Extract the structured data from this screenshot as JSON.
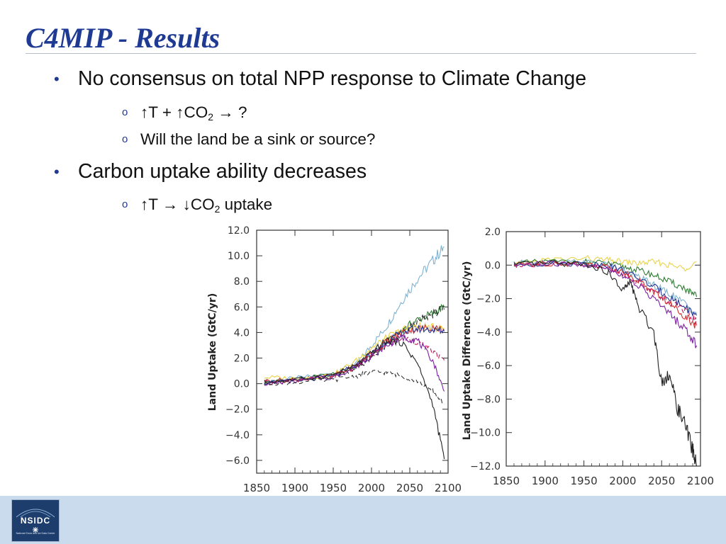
{
  "slide": {
    "title": "C4MIP - Results",
    "bullets": [
      {
        "text": "No consensus on total NPP response to Climate Change",
        "subs": [
          {
            "pre": "↑T + ↑CO",
            "sub": "2",
            "post": " → ?"
          },
          {
            "pre": "Will the land be a sink or source?",
            "sub": "",
            "post": ""
          }
        ]
      },
      {
        "text": "Carbon uptake ability decreases",
        "subs": [
          {
            "pre": "↑T  → ↓CO",
            "sub": "2",
            "post": " uptake"
          }
        ]
      }
    ],
    "logo": {
      "text": "NSIDC",
      "subtext": "National Snow and Ice Data Center"
    }
  },
  "colors": {
    "title": "#1f3a93",
    "footer": "#c9dbec",
    "logo": "#1d3e6c"
  },
  "chart_data": [
    {
      "type": "line",
      "title": "",
      "xlabel": "",
      "ylabel": "Land Uptake (GtC/yr)",
      "xlim": [
        1850,
        2100
      ],
      "ylim": [
        -7.0,
        12.0
      ],
      "x_ticks": [
        1850,
        1900,
        1950,
        2000,
        2050,
        2100
      ],
      "y_ticks": [
        "12.0",
        "10.0",
        "8.0",
        "6.0",
        "4.0",
        "2.0",
        "0.0",
        "−2.0",
        "−4.0",
        "−6.0"
      ],
      "grid": false,
      "series": [
        {
          "color": "#7fb2cf",
          "dash": false,
          "x": [
            1860,
            1900,
            1950,
            1980,
            2000,
            2020,
            2040,
            2060,
            2080,
            2095
          ],
          "y": [
            0.2,
            0.4,
            0.8,
            1.5,
            3,
            4.5,
            6.5,
            8.2,
            9.6,
            10.7
          ]
        },
        {
          "color": "#2e7d32",
          "dash": false,
          "x": [
            1860,
            1900,
            1950,
            1980,
            2000,
            2020,
            2040,
            2060,
            2080,
            2095
          ],
          "y": [
            0.1,
            0.3,
            0.7,
            1.3,
            2.2,
            3.2,
            4.2,
            5.0,
            5.5,
            6.0
          ]
        },
        {
          "color": "#222222",
          "dash": true,
          "x": [
            1860,
            1900,
            1950,
            1980,
            2000,
            2020,
            2040,
            2060,
            2080,
            2095
          ],
          "y": [
            0.1,
            0.3,
            0.6,
            1.2,
            2.0,
            3.0,
            4.0,
            4.8,
            5.5,
            5.8
          ]
        },
        {
          "color": "#e8d34a",
          "dash": false,
          "x": [
            1860,
            1900,
            1950,
            1980,
            2000,
            2020,
            2040,
            2060,
            2080,
            2095
          ],
          "y": [
            0.5,
            0.4,
            0.7,
            1.8,
            2.8,
            3.6,
            4.2,
            4.5,
            4.4,
            4.3
          ]
        },
        {
          "color": "#d32f2f",
          "dash": false,
          "x": [
            1860,
            1900,
            1950,
            1980,
            2000,
            2020,
            2040,
            2060,
            2080,
            2095
          ],
          "y": [
            0.2,
            0.3,
            0.6,
            1.4,
            2.4,
            3.3,
            4.0,
            4.3,
            4.4,
            4.2
          ]
        },
        {
          "color": "#283593",
          "dash": false,
          "x": [
            1860,
            1900,
            1950,
            1980,
            2000,
            2020,
            2040,
            2060,
            2080,
            2095
          ],
          "y": [
            0.1,
            0.2,
            0.6,
            1.4,
            2.3,
            3.3,
            4.0,
            4.3,
            4.2,
            4.1
          ]
        },
        {
          "color": "#c2185b",
          "dash": true,
          "x": [
            1860,
            1900,
            1950,
            1980,
            2000,
            2020,
            2040,
            2060,
            2080,
            2095
          ],
          "y": [
            0.1,
            0.2,
            0.6,
            1.3,
            2.2,
            3.0,
            3.6,
            3.3,
            2.5,
            1.8
          ]
        },
        {
          "color": "#7b1fa2",
          "dash": false,
          "x": [
            1860,
            1900,
            1950,
            1980,
            2000,
            2020,
            2040,
            2060,
            2080,
            2095
          ],
          "y": [
            0.0,
            0.2,
            0.5,
            1.3,
            2.2,
            3.0,
            3.6,
            3.4,
            1.8,
            -0.6
          ]
        },
        {
          "color": "#333333",
          "dash": true,
          "x": [
            1860,
            1900,
            1950,
            1980,
            2000,
            2020,
            2040,
            2060,
            2080,
            2095
          ],
          "y": [
            0.0,
            0.1,
            0.3,
            0.6,
            0.9,
            0.9,
            0.6,
            0.2,
            -0.6,
            -1.6
          ]
        },
        {
          "color": "#222222",
          "dash": false,
          "x": [
            1860,
            1900,
            1950,
            1980,
            2000,
            2020,
            2040,
            2060,
            2080,
            2095
          ],
          "y": [
            0.1,
            0.3,
            0.7,
            1.4,
            2.4,
            3.4,
            3.2,
            1.6,
            -1.6,
            -5.9
          ]
        }
      ]
    },
    {
      "type": "line",
      "title": "",
      "xlabel": "",
      "ylabel": "Land Uptake Difference (GtC/yr)",
      "xlim": [
        1850,
        2100
      ],
      "ylim": [
        -12.0,
        2.0
      ],
      "x_ticks": [
        1850,
        1900,
        1950,
        2000,
        2050,
        2100
      ],
      "y_ticks": [
        "2.0",
        "0.0",
        "−2.0",
        "−4.0",
        "−6.0",
        "−8.0",
        "−10.0",
        "−12.0"
      ],
      "grid": false,
      "series": [
        {
          "color": "#e8d34a",
          "dash": false,
          "x": [
            1860,
            1900,
            1950,
            1980,
            2000,
            2020,
            2040,
            2060,
            2080,
            2095
          ],
          "y": [
            0.0,
            0.3,
            0.4,
            0.3,
            0.2,
            0.1,
            0.2,
            0.0,
            -0.2,
            0.2
          ]
        },
        {
          "color": "#2e7d32",
          "dash": false,
          "x": [
            1860,
            1900,
            1950,
            1980,
            2000,
            2020,
            2040,
            2060,
            2080,
            2095
          ],
          "y": [
            0.1,
            0.2,
            0.2,
            0.1,
            -0.1,
            -0.3,
            -0.6,
            -1.0,
            -1.4,
            -1.9
          ]
        },
        {
          "color": "#7fb2cf",
          "dash": false,
          "x": [
            1860,
            1900,
            1950,
            1980,
            2000,
            2020,
            2040,
            2060,
            2080,
            2095
          ],
          "y": [
            0.1,
            0.2,
            0.2,
            0.0,
            -0.3,
            -0.7,
            -1.2,
            -1.7,
            -2.3,
            -2.9
          ]
        },
        {
          "color": "#283593",
          "dash": false,
          "x": [
            1860,
            1900,
            1950,
            1980,
            2000,
            2020,
            2040,
            2060,
            2080,
            2095
          ],
          "y": [
            0.0,
            0.1,
            0.1,
            0.0,
            -0.3,
            -0.8,
            -1.3,
            -1.9,
            -2.5,
            -3.0
          ]
        },
        {
          "color": "#d32f2f",
          "dash": false,
          "x": [
            1860,
            1900,
            1950,
            1980,
            2000,
            2020,
            2040,
            2060,
            2080,
            2095
          ],
          "y": [
            0.0,
            0.1,
            0.1,
            -0.1,
            -0.4,
            -0.9,
            -1.6,
            -2.3,
            -3.0,
            -3.6
          ]
        },
        {
          "color": "#c2185b",
          "dash": true,
          "x": [
            1860,
            1900,
            1950,
            1980,
            2000,
            2020,
            2040,
            2060,
            2080,
            2095
          ],
          "y": [
            0.0,
            0.1,
            0.0,
            -0.2,
            -0.5,
            -1.0,
            -1.6,
            -2.2,
            -2.8,
            -3.4
          ]
        },
        {
          "color": "#7b1fa2",
          "dash": false,
          "x": [
            1860,
            1900,
            1950,
            1980,
            2000,
            2020,
            2040,
            2060,
            2080,
            2095
          ],
          "y": [
            0.0,
            0.1,
            0.0,
            -0.2,
            -0.6,
            -1.2,
            -2.0,
            -2.9,
            -3.8,
            -4.8
          ]
        },
        {
          "color": "#222222",
          "dash": false,
          "x": [
            1860,
            1900,
            1950,
            1980,
            2000,
            2010,
            2020,
            2040,
            2050,
            2060,
            2070,
            2080,
            2090,
            2095
          ],
          "y": [
            0.0,
            0.1,
            0.1,
            -0.4,
            -1.5,
            -1.0,
            -2.5,
            -4.0,
            -7.0,
            -6.5,
            -8.5,
            -9.5,
            -11.0,
            -12.0
          ]
        }
      ]
    }
  ]
}
